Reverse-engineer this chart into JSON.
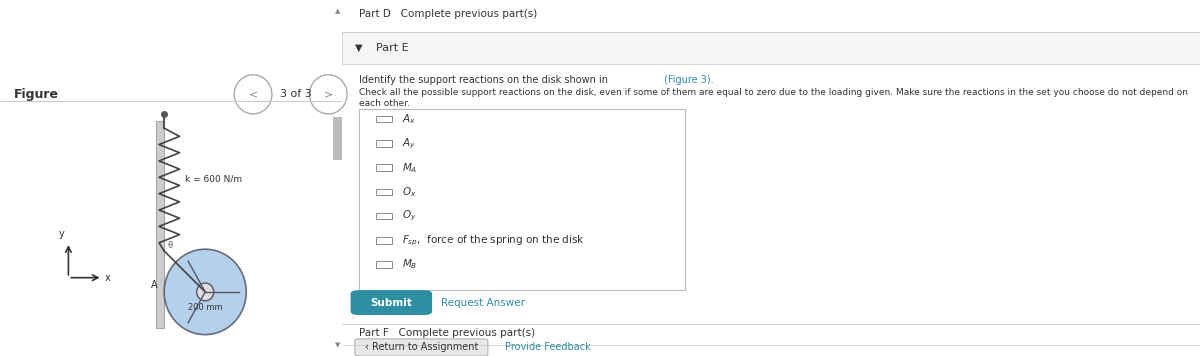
{
  "bg_color": "#ffffff",
  "left_panel_bg": "#ffffff",
  "right_panel_bg": "#ffffff",
  "part_d_text": "Part D   Complete previous part(s)",
  "part_e_header": "Part E",
  "part_e_header_bg": "#f5f5f5",
  "instruction_line1": "Identify the support reactions on the disk shown in (Figure 3).",
  "instruction_line2": "Check all the possible support reactions on the disk, even if some of them are equal to zero due to the loading given. Make sure the reactions in the set you choose do not depend on each other.",
  "checkbox_items": [
    "A_x",
    "A_y",
    "M_A",
    "O_x",
    "O_y",
    "F_sp,  force of the spring on the disk",
    "M_B"
  ],
  "submit_btn_text": "Submit",
  "submit_btn_color": "#2e8fa3",
  "request_answer_text": "Request Answer",
  "request_answer_color": "#2e8fa3",
  "part_f_text": "Part F   Complete previous part(s)",
  "return_btn_text": "‹ Return to Assignment",
  "provide_feedback_text": "Provide Feedback",
  "figure_label": "Figure",
  "nav_text": "3 of 3",
  "spring_label": "k = 600 N/m",
  "disk_label": "200 mm",
  "point_label": "A",
  "divider_color": "#cccccc",
  "part_e_border_color": "#cccccc",
  "checkbox_box_border": "#aaaaaa",
  "text_color": "#333333",
  "small_text_color": "#555555"
}
